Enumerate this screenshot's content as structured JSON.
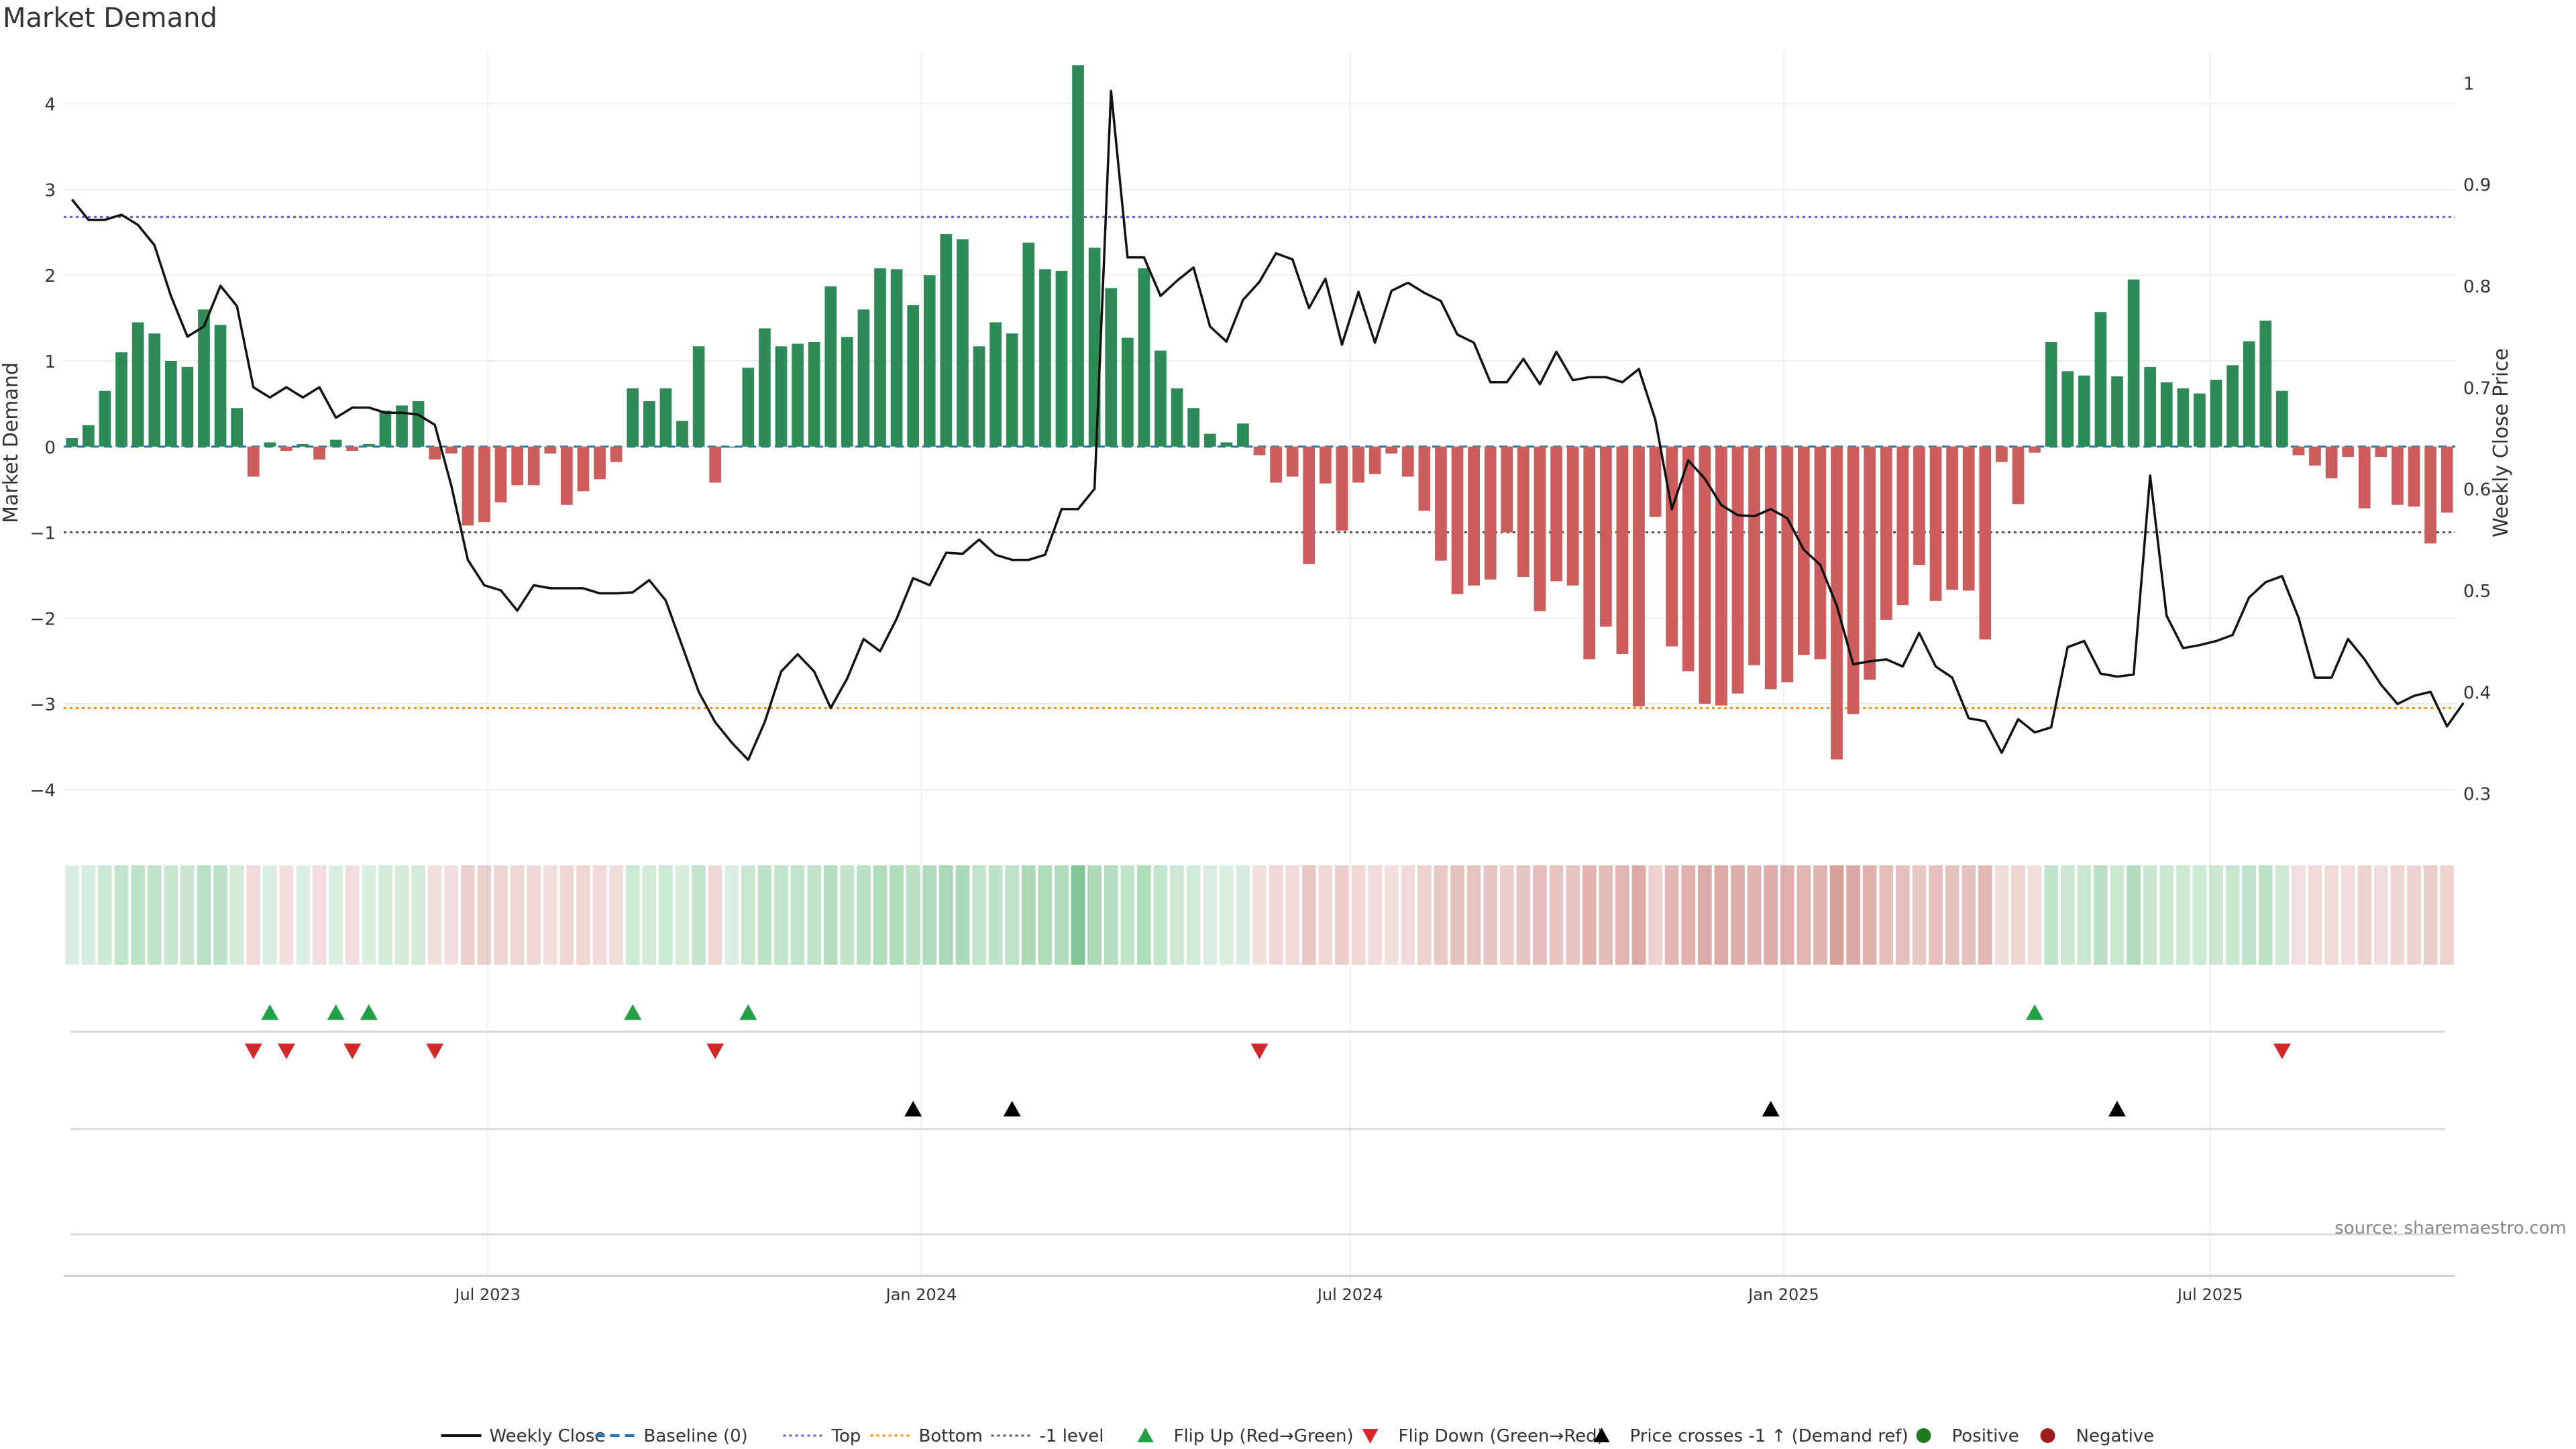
{
  "title": "Market Demand",
  "source": "source: sharemaestro.com",
  "colors": {
    "positive": "#2e8b57",
    "negative": "#cd5c5c",
    "flip_up": "#22a046",
    "flip_down": "#d62728",
    "cross": "#000000",
    "top_line": "#6a5acd",
    "bottom_line": "#ff8c00",
    "minus1_line": "#555555",
    "baseline": "#1f77b4"
  },
  "chart_data": {
    "type": "bar",
    "x_start": "2023-01-02",
    "x_interval": "weekly",
    "xticks": [
      "Jul 2023",
      "Jan 2024",
      "Jul 2024",
      "Jan 2025",
      "Jul 2025"
    ],
    "ylabel": "Market Demand",
    "y2label": "Weekly Close Price",
    "ylim": [
      -4.4,
      4.6
    ],
    "y2lim": [
      0.27,
      1.03
    ],
    "yticks": [
      -4,
      -3,
      -2,
      -1,
      0,
      1,
      2,
      3,
      4
    ],
    "y2ticks": [
      0.3,
      0.4,
      0.5,
      0.6,
      0.7,
      0.8,
      0.9,
      1
    ],
    "reference_lines": {
      "top": 2.68,
      "bottom": -3.05,
      "minus1": -1.0,
      "baseline": 0
    },
    "demand": [
      0.1,
      0.25,
      0.65,
      1.1,
      1.45,
      1.32,
      1.0,
      0.93,
      1.6,
      1.42,
      0.45,
      -0.35,
      0.05,
      -0.05,
      0.03,
      -0.15,
      0.08,
      -0.05,
      0.03,
      0.42,
      0.48,
      0.53,
      -0.15,
      -0.08,
      -0.92,
      -0.88,
      -0.65,
      -0.45,
      -0.45,
      -0.08,
      -0.68,
      -0.52,
      -0.38,
      -0.18,
      0.68,
      0.53,
      0.68,
      0.3,
      1.17,
      -0.42,
      0.0,
      0.92,
      1.38,
      1.17,
      1.2,
      1.22,
      1.87,
      1.28,
      1.6,
      2.08,
      2.07,
      1.65,
      2.0,
      2.48,
      2.42,
      1.17,
      1.45,
      1.32,
      2.38,
      2.07,
      2.05,
      4.45,
      2.32,
      1.85,
      1.27,
      2.08,
      1.12,
      0.68,
      0.45,
      0.15,
      0.05,
      0.27,
      -0.1,
      -0.42,
      -0.35,
      -1.37,
      -0.43,
      -0.98,
      -0.42,
      -0.32,
      -0.08,
      -0.35,
      -0.75,
      -1.33,
      -1.72,
      -1.62,
      -1.55,
      -1.0,
      -1.52,
      -1.92,
      -1.57,
      -1.62,
      -2.48,
      -2.1,
      -2.42,
      -3.03,
      -0.82,
      -2.33,
      -2.62,
      -3.0,
      -3.02,
      -2.88,
      -2.55,
      -2.83,
      -2.75,
      -2.43,
      -2.48,
      -3.65,
      -3.12,
      -2.72,
      -2.02,
      -1.85,
      -1.38,
      -1.8,
      -1.67,
      -1.68,
      -2.25,
      -0.18,
      -0.67,
      -0.07,
      1.22,
      0.88,
      0.83,
      1.57,
      0.82,
      1.95,
      0.93,
      0.75,
      0.68,
      0.62,
      0.78,
      0.95,
      1.23,
      1.47,
      0.65,
      -0.1,
      -0.22,
      -0.37,
      -0.12,
      -0.72,
      -0.12,
      -0.68,
      -0.7,
      -1.13,
      -0.77
    ],
    "price": [
      0.885,
      0.865,
      0.865,
      0.87,
      0.86,
      0.84,
      0.79,
      0.75,
      0.76,
      0.8,
      0.78,
      0.7,
      0.69,
      0.7,
      0.69,
      0.7,
      0.67,
      0.68,
      0.68,
      0.675,
      0.675,
      0.673,
      0.663,
      0.603,
      0.53,
      0.505,
      0.5,
      0.48,
      0.505,
      0.502,
      0.502,
      0.502,
      0.497,
      0.497,
      0.498,
      0.51,
      0.49,
      0.445,
      0.4,
      0.37,
      0.35,
      0.333,
      0.37,
      0.42,
      0.437,
      0.42,
      0.384,
      0.413,
      0.452,
      0.44,
      0.472,
      0.512,
      0.505,
      0.537,
      0.536,
      0.55,
      0.535,
      0.53,
      0.53,
      0.535,
      0.58,
      0.58,
      0.6,
      0.992,
      0.828,
      0.828,
      0.79,
      0.805,
      0.818,
      0.76,
      0.745,
      0.786,
      0.804,
      0.832,
      0.826,
      0.778,
      0.807,
      0.742,
      0.794,
      0.744,
      0.795,
      0.803,
      0.793,
      0.785,
      0.752,
      0.744,
      0.705,
      0.705,
      0.728,
      0.703,
      0.735,
      0.707,
      0.71,
      0.71,
      0.705,
      0.718,
      0.668,
      0.58,
      0.628,
      0.61,
      0.584,
      0.574,
      0.573,
      0.58,
      0.571,
      0.54,
      0.525,
      0.485,
      0.427,
      0.43,
      0.432,
      0.425,
      0.458,
      0.425,
      0.414,
      0.374,
      0.371,
      0.34,
      0.373,
      0.36,
      0.365,
      0.444,
      0.45,
      0.418,
      0.415,
      0.417,
      0.613,
      0.475,
      0.443,
      0.446,
      0.45,
      0.456,
      0.493,
      0.508,
      0.514,
      0.473,
      0.414,
      0.414,
      0.452,
      0.432,
      0.407,
      0.388,
      0.396,
      0.4,
      0.366,
      0.389
    ],
    "flip_up_weeks": [
      12,
      16,
      18,
      34,
      41,
      119
    ],
    "flip_down_weeks": [
      11,
      13,
      17,
      22,
      39,
      72,
      134
    ],
    "cross_up_weeks": [
      51,
      57,
      103,
      124
    ],
    "legend": [
      "Weekly Close",
      "Baseline (0)",
      "Top",
      "Bottom",
      "-1 level",
      "Flip Up (Red→Green)",
      "Flip Down (Green→Red)",
      "Price crosses -1 ↑ (Demand ref)",
      "Positive",
      "Negative"
    ],
    "legend_position": "bottom"
  }
}
